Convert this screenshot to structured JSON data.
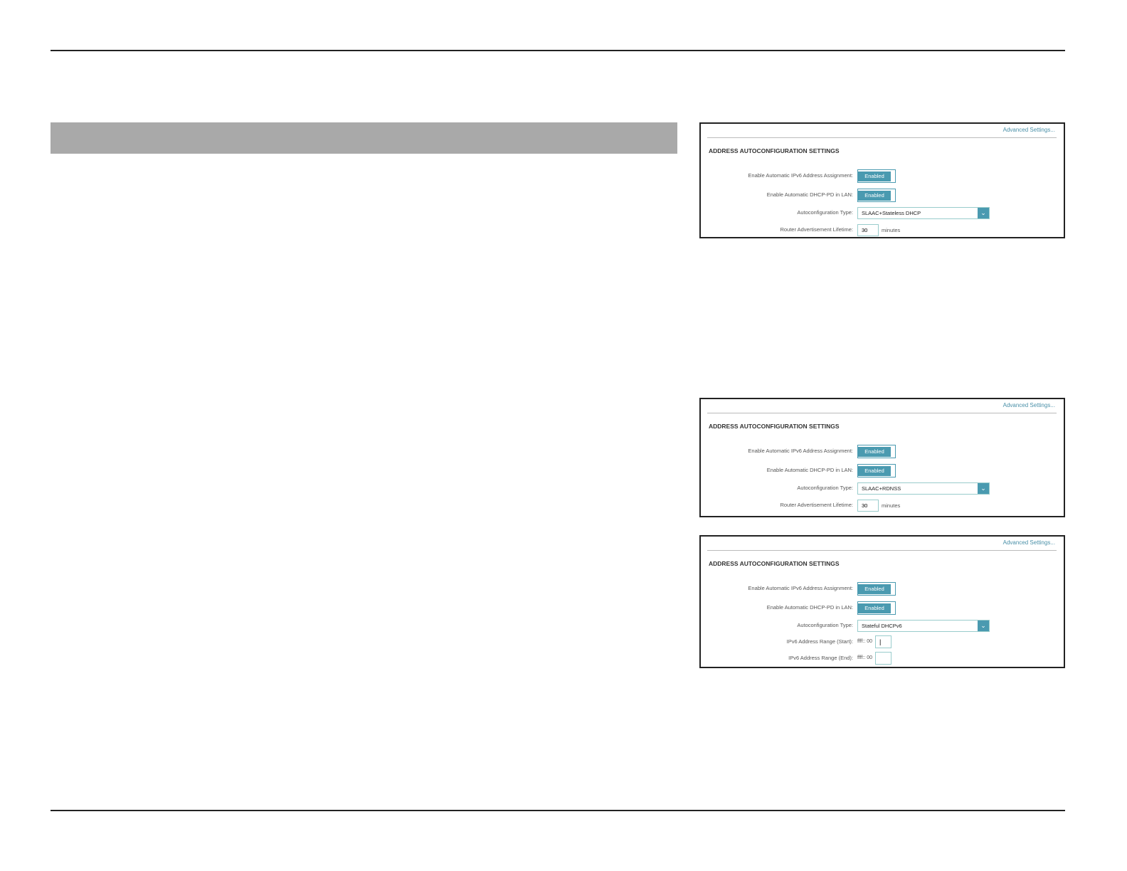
{
  "colors": {
    "accent": "#4a9ab0",
    "bar": "#a9a9a9"
  },
  "panels": [
    {
      "advanced": "Advanced Settings...",
      "heading": "ADDRESS AUTOCONFIGURATION SETTINGS",
      "rows": [
        {
          "type": "toggle",
          "label": "Enable Automatic IPv6 Address Assignment:",
          "value": "Enabled"
        },
        {
          "type": "toggle",
          "label": "Enable Automatic DHCP-PD in LAN:",
          "value": "Enabled"
        },
        {
          "type": "select",
          "label": "Autoconfiguration Type:",
          "value": "SLAAC+Stateless DHCP"
        },
        {
          "type": "input",
          "label": "Router Advertisement Lifetime:",
          "value": "30",
          "unit": "minutes"
        }
      ]
    },
    {
      "advanced": "Advanced Settings...",
      "heading": "ADDRESS AUTOCONFIGURATION SETTINGS",
      "rows": [
        {
          "type": "toggle",
          "label": "Enable Automatic IPv6 Address Assignment:",
          "value": "Enabled"
        },
        {
          "type": "toggle",
          "label": "Enable Automatic DHCP-PD in LAN:",
          "value": "Enabled"
        },
        {
          "type": "select",
          "label": "Autoconfiguration Type:",
          "value": "SLAAC+RDNSS"
        },
        {
          "type": "input",
          "label": "Router Advertisement Lifetime:",
          "value": "30",
          "unit": "minutes"
        }
      ]
    },
    {
      "advanced": "Advanced Settings...",
      "heading": "ADDRESS AUTOCONFIGURATION SETTINGS",
      "rows": [
        {
          "type": "toggle",
          "label": "Enable Automatic IPv6 Address Assignment:",
          "value": "Enabled"
        },
        {
          "type": "toggle",
          "label": "Enable Automatic DHCP-PD in LAN:",
          "value": "Enabled"
        },
        {
          "type": "select",
          "label": "Autoconfiguration Type:",
          "value": "Stateful DHCPv6"
        },
        {
          "type": "range",
          "label": "IPv6 Address Range (Start):",
          "prefix": "ffff:: 00",
          "value": "|"
        },
        {
          "type": "range",
          "label": "IPv6 Address Range (End):",
          "prefix": "ffff:: 00",
          "value": ""
        }
      ]
    }
  ]
}
